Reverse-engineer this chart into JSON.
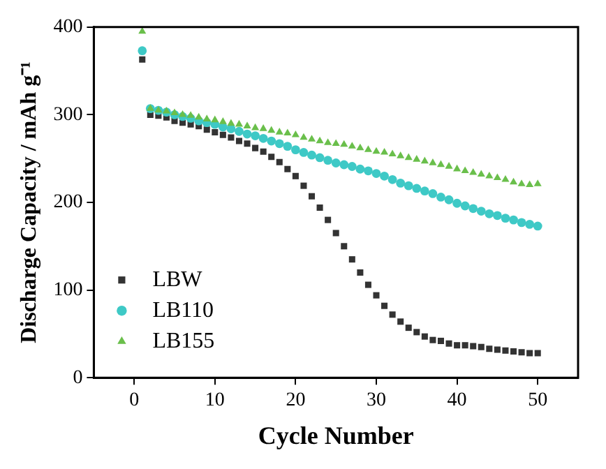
{
  "chart_data": {
    "type": "scatter",
    "xlabel": "Cycle Number",
    "ylabel": "Discharge Capacity / mAh g⁻¹",
    "x": [
      1,
      2,
      3,
      4,
      5,
      6,
      7,
      8,
      9,
      10,
      11,
      12,
      13,
      14,
      15,
      16,
      17,
      18,
      19,
      20,
      21,
      22,
      23,
      24,
      25,
      26,
      27,
      28,
      29,
      30,
      31,
      32,
      33,
      34,
      35,
      36,
      37,
      38,
      39,
      40,
      41,
      42,
      43,
      44,
      45,
      46,
      47,
      48,
      49,
      50
    ],
    "series": [
      {
        "name": "LBW",
        "color": "#333333",
        "marker": "square",
        "values": [
          363,
          300,
          299,
          297,
          293,
          291,
          289,
          287,
          283,
          280,
          277,
          274,
          270,
          267,
          262,
          258,
          252,
          246,
          238,
          230,
          219,
          207,
          194,
          180,
          165,
          150,
          135,
          120,
          106,
          94,
          82,
          72,
          64,
          57,
          52,
          47,
          43,
          42,
          39,
          37,
          37,
          36,
          35,
          33,
          32,
          31,
          30,
          29,
          28,
          28
        ]
      },
      {
        "name": "LB110",
        "color": "#3ec9c6",
        "marker": "circle",
        "values": [
          373,
          307,
          305,
          303,
          300,
          298,
          296,
          293,
          291,
          289,
          286,
          284,
          281,
          278,
          276,
          273,
          270,
          267,
          264,
          260,
          257,
          254,
          251,
          248,
          245,
          243,
          241,
          238,
          236,
          233,
          230,
          226,
          222,
          219,
          216,
          213,
          210,
          206,
          203,
          199,
          196,
          193,
          190,
          187,
          185,
          182,
          180,
          177,
          175,
          173
        ]
      },
      {
        "name": "LB155",
        "color": "#6abf4b",
        "marker": "triangle",
        "values": [
          395,
          307,
          305,
          304,
          302,
          300,
          299,
          297,
          295,
          294,
          292,
          290,
          289,
          287,
          285,
          284,
          282,
          280,
          279,
          277,
          274,
          272,
          270,
          268,
          267,
          266,
          264,
          262,
          260,
          258,
          257,
          255,
          253,
          251,
          249,
          247,
          245,
          243,
          241,
          238,
          236,
          234,
          232,
          230,
          228,
          226,
          223,
          221,
          220,
          221
        ]
      }
    ],
    "xlim": [
      -5,
      55
    ],
    "xticks": [
      0,
      10,
      20,
      30,
      40,
      50
    ],
    "ylim": [
      0,
      400
    ],
    "yticks": [
      0,
      100,
      200,
      300,
      400
    ],
    "grid": false,
    "legend": "bottom left"
  }
}
